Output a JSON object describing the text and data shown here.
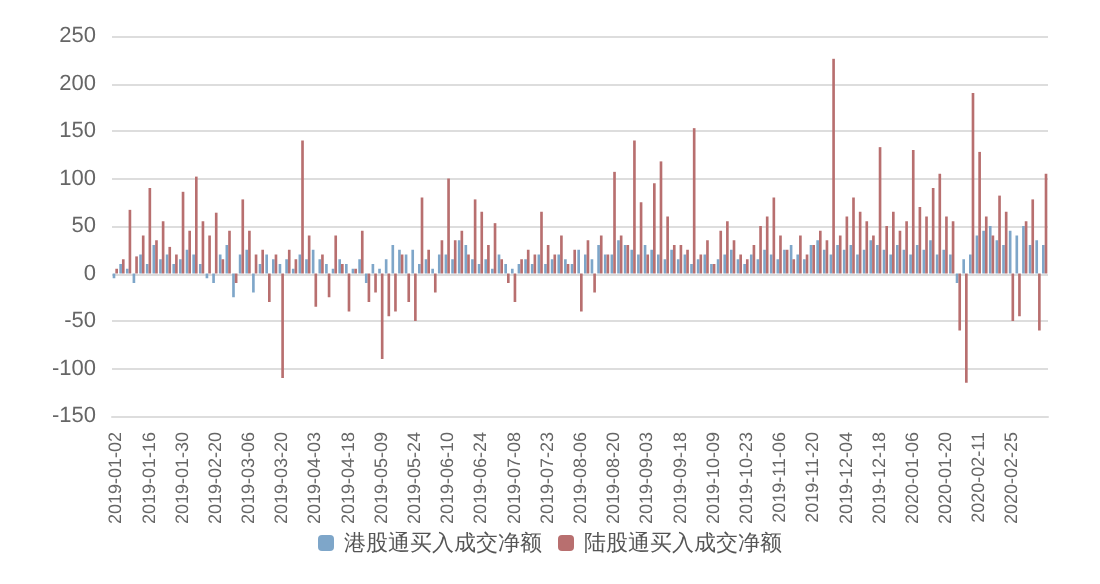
{
  "chart_data": {
    "type": "bar",
    "categories": [
      "2019-01-02",
      null,
      null,
      null,
      null,
      "2019-01-16",
      null,
      null,
      null,
      null,
      "2019-01-30",
      null,
      null,
      null,
      null,
      "2019-02-20",
      null,
      null,
      null,
      null,
      "2019-03-06",
      null,
      null,
      null,
      null,
      "2019-03-20",
      null,
      null,
      null,
      null,
      "2019-04-03",
      null,
      null,
      null,
      null,
      "2019-04-18",
      null,
      null,
      null,
      null,
      "2019-05-09",
      null,
      null,
      null,
      null,
      "2019-05-24",
      null,
      null,
      null,
      null,
      "2019-06-10",
      null,
      null,
      null,
      null,
      "2019-06-24",
      null,
      null,
      null,
      null,
      "2019-07-08",
      null,
      null,
      null,
      null,
      "2019-07-23",
      null,
      null,
      null,
      null,
      "2019-08-06",
      null,
      null,
      null,
      null,
      "2019-08-20",
      null,
      null,
      null,
      null,
      "2019-09-03",
      null,
      null,
      null,
      null,
      "2019-09-18",
      null,
      null,
      null,
      null,
      "2019-10-09",
      null,
      null,
      null,
      null,
      "2019-10-23",
      null,
      null,
      null,
      null,
      "2019-11-06",
      null,
      null,
      null,
      null,
      "2019-11-20",
      null,
      null,
      null,
      null,
      "2019-12-04",
      null,
      null,
      null,
      null,
      "2019-12-18",
      null,
      null,
      null,
      null,
      "2020-01-06",
      null,
      null,
      null,
      null,
      "2020-01-20",
      null,
      null,
      null,
      null,
      "2020-02-11",
      null,
      null,
      null,
      null,
      "2020-02-25",
      null,
      null,
      null,
      null,
      null
    ],
    "series": [
      {
        "name": "港股通买入成交净额",
        "color": "#7ea6c9",
        "values": [
          -5,
          10,
          5,
          -10,
          20,
          10,
          30,
          15,
          20,
          10,
          15,
          25,
          20,
          10,
          -5,
          -10,
          20,
          30,
          -25,
          20,
          25,
          -20,
          10,
          20,
          15,
          10,
          15,
          5,
          20,
          15,
          25,
          15,
          10,
          5,
          15,
          10,
          5,
          15,
          -10,
          10,
          5,
          15,
          30,
          25,
          20,
          25,
          10,
          15,
          5,
          20,
          20,
          15,
          35,
          30,
          15,
          10,
          15,
          5,
          20,
          10,
          5,
          10,
          15,
          10,
          20,
          10,
          15,
          20,
          15,
          10,
          25,
          20,
          15,
          30,
          20,
          20,
          35,
          30,
          25,
          20,
          30,
          25,
          20,
          15,
          25,
          15,
          20,
          10,
          15,
          20,
          10,
          15,
          20,
          25,
          15,
          10,
          20,
          15,
          25,
          20,
          15,
          25,
          30,
          20,
          15,
          30,
          35,
          25,
          20,
          30,
          25,
          30,
          20,
          25,
          35,
          30,
          25,
          20,
          30,
          25,
          20,
          30,
          25,
          35,
          20,
          25,
          20,
          -10,
          15,
          20,
          40,
          45,
          50,
          35,
          30,
          45,
          40,
          50,
          30,
          35,
          30
        ]
      },
      {
        "name": "陆股通买入成交净额",
        "color": "#b86f6f",
        "values": [
          5,
          15,
          67,
          18,
          40,
          90,
          35,
          55,
          28,
          20,
          86,
          45,
          102,
          55,
          40,
          64,
          15,
          45,
          -10,
          78,
          45,
          20,
          25,
          -30,
          20,
          -110,
          25,
          15,
          140,
          40,
          -35,
          20,
          -25,
          40,
          10,
          -40,
          5,
          45,
          -30,
          -20,
          -90,
          -45,
          -40,
          20,
          -30,
          -50,
          80,
          25,
          -20,
          35,
          100,
          35,
          45,
          20,
          78,
          65,
          30,
          53,
          15,
          -10,
          -30,
          15,
          25,
          20,
          65,
          30,
          20,
          40,
          10,
          25,
          -40,
          35,
          -20,
          40,
          20,
          107,
          40,
          30,
          140,
          75,
          20,
          95,
          118,
          60,
          30,
          30,
          25,
          153,
          20,
          35,
          10,
          45,
          55,
          35,
          20,
          15,
          30,
          50,
          60,
          80,
          40,
          25,
          15,
          40,
          20,
          30,
          45,
          35,
          226,
          40,
          60,
          80,
          65,
          55,
          40,
          133,
          50,
          65,
          45,
          55,
          130,
          70,
          60,
          90,
          105,
          60,
          55,
          -60,
          -115,
          190,
          128,
          60,
          40,
          82,
          65,
          -50,
          -45,
          55,
          78,
          -60,
          105
        ]
      }
    ],
    "ylim": [
      -150,
      250
    ],
    "yticks": [
      -150,
      -100,
      -50,
      0,
      50,
      100,
      150,
      200,
      250
    ],
    "grid": "y",
    "legend": "bottom"
  }
}
